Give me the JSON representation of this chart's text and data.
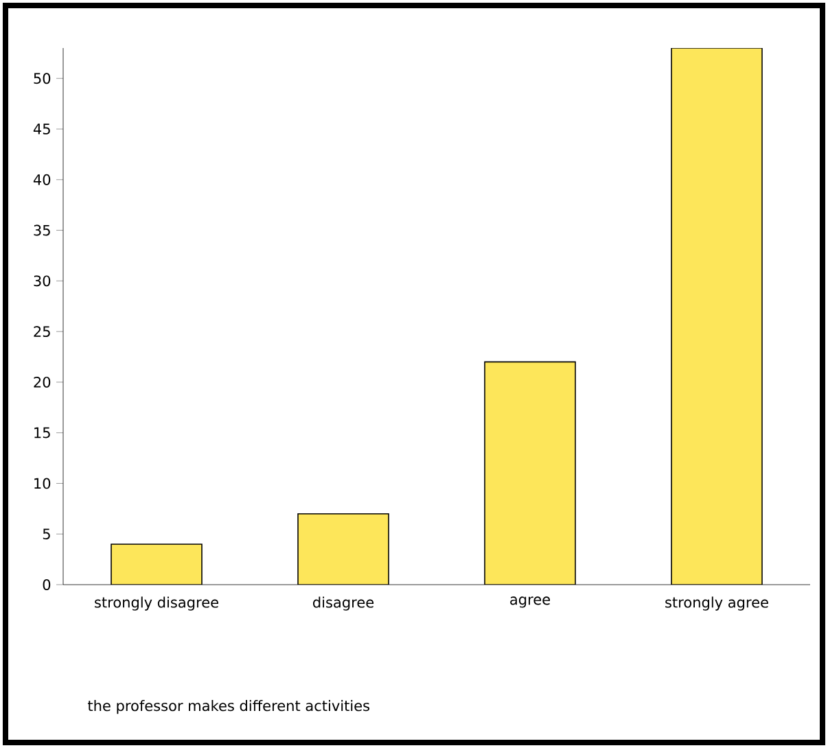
{
  "chart_data": {
    "type": "bar",
    "annotations": [
      "the professor makes different activities"
    ],
    "categories": [
      "strongly disagree",
      "disagree",
      "agree",
      "strongly agree"
    ],
    "values": [
      4,
      7,
      22,
      53
    ],
    "color": "#fde65a",
    "ylim": [
      0,
      53
    ],
    "yticks": [
      0,
      5,
      10,
      15,
      20,
      25,
      30,
      35,
      40,
      45,
      50
    ],
    "grid": false
  }
}
